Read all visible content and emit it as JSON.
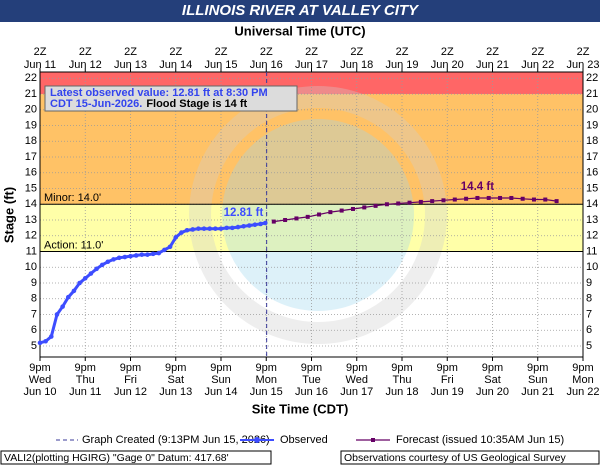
{
  "chart_data": {
    "type": "hydrograph",
    "title": "ILLINOIS RIVER AT VALLEY CITY",
    "top_axis_title": "Universal Time (UTC)",
    "x_axis_title": "Site Time (CDT)",
    "y_axis_title": "Stage (ft)",
    "ylim": [
      4.3,
      22.4
    ],
    "yticks": [
      5,
      6,
      7,
      8,
      9,
      10,
      11,
      12,
      13,
      14,
      15,
      16,
      17,
      18,
      19,
      20,
      21,
      22
    ],
    "xlim": [
      "2026-06-10T21:00",
      "2026-06-22T21:00"
    ],
    "xticks": [
      {
        "value": "2026-06-10T21:00",
        "label": "9pm"
      },
      {
        "value": "2026-06-11T21:00",
        "label": "9pm"
      },
      {
        "value": "2026-06-12T21:00",
        "label": "9pm"
      },
      {
        "value": "2026-06-13T21:00",
        "label": "9pm"
      },
      {
        "value": "2026-06-14T21:00",
        "label": "9pm"
      },
      {
        "value": "2026-06-15T21:00",
        "label": "9pm"
      },
      {
        "value": "2026-06-16T21:00",
        "label": "9pm"
      },
      {
        "value": "2026-06-17T21:00",
        "label": "9pm"
      },
      {
        "value": "2026-06-18T21:00",
        "label": "9pm"
      },
      {
        "value": "2026-06-19T21:00",
        "label": "9pm"
      },
      {
        "value": "2026-06-20T21:00",
        "label": "9pm"
      },
      {
        "value": "2026-06-21T21:00",
        "label": "9pm"
      },
      {
        "value": "2026-06-22T21:00",
        "label": "9pm"
      }
    ],
    "xtick_days": [
      "Wed",
      "Thu",
      "Fri",
      "Sat",
      "Sun",
      "Mon",
      "Tue",
      "Wed",
      "Thu",
      "Fri",
      "Sat",
      "Sun",
      "Mon"
    ],
    "xtick_dates": [
      "Jun 10",
      "Jun 11",
      "Jun 12",
      "Jun 13",
      "Jun 14",
      "Jun 15",
      "Jun 16",
      "Jun 17",
      "Jun 18",
      "Jun 19",
      "Jun 20",
      "Jun 21",
      "Jun 22"
    ],
    "x2ticks": [
      "2Z",
      "2Z",
      "2Z",
      "2Z",
      "2Z",
      "2Z",
      "2Z",
      "2Z",
      "2Z",
      "2Z",
      "2Z",
      "2Z",
      "2Z"
    ],
    "x2tick_dates": [
      "Jun 11",
      "Jun 12",
      "Jun 13",
      "Jun 14",
      "Jun 15",
      "Jun 16",
      "Jun 17",
      "Jun 18",
      "Jun 19",
      "Jun 20",
      "Jun 21",
      "Jun 22",
      "Jun 23"
    ],
    "grid": true,
    "stage_bands": [
      {
        "from": 11,
        "to": 14,
        "color": "#ffffa8"
      },
      {
        "from": 14,
        "to": 21,
        "color": "#ffc266"
      },
      {
        "from": 21,
        "color": "#ff6666"
      }
    ],
    "thresholds": [
      {
        "value": 14,
        "label": "Minor: 14.0'"
      },
      {
        "value": 11,
        "label": "Action: 11.0'"
      }
    ],
    "graph_created": "2026-06-15T21:13",
    "legend_graph_created": "Graph Created (9:13PM Jun 15, 2026)",
    "latest_note": {
      "line1": "Latest observed value: 12.81 ft at 8:30 PM",
      "line2_a": "CDT 15-Jun-2026.",
      "line2_b": "Flood Stage is 14 ft"
    },
    "latest_label": "12.81 ft",
    "forecast_peak_label": "14.4 ft",
    "series": [
      {
        "name": "Observed",
        "color": "#3d4dff",
        "marker": "circle",
        "x": [
          "2026-06-10T21:00",
          "2026-06-11T00:00",
          "2026-06-11T03:00",
          "2026-06-11T06:00",
          "2026-06-11T09:00",
          "2026-06-11T12:00",
          "2026-06-11T15:00",
          "2026-06-11T18:00",
          "2026-06-11T21:00",
          "2026-06-12T00:00",
          "2026-06-12T03:00",
          "2026-06-12T06:00",
          "2026-06-12T09:00",
          "2026-06-12T12:00",
          "2026-06-12T15:00",
          "2026-06-12T18:00",
          "2026-06-12T21:00",
          "2026-06-13T00:00",
          "2026-06-13T03:00",
          "2026-06-13T06:00",
          "2026-06-13T09:00",
          "2026-06-13T12:00",
          "2026-06-13T15:00",
          "2026-06-13T18:00",
          "2026-06-13T21:00",
          "2026-06-14T00:00",
          "2026-06-14T03:00",
          "2026-06-14T06:00",
          "2026-06-14T09:00",
          "2026-06-14T12:00",
          "2026-06-14T15:00",
          "2026-06-14T18:00",
          "2026-06-14T21:00",
          "2026-06-15T00:00",
          "2026-06-15T03:00",
          "2026-06-15T06:00",
          "2026-06-15T09:00",
          "2026-06-15T12:00",
          "2026-06-15T15:00",
          "2026-06-15T18:00",
          "2026-06-15T20:30"
        ],
        "values": [
          5.2,
          5.3,
          5.6,
          7.0,
          7.5,
          8.1,
          8.5,
          9.0,
          9.3,
          9.6,
          9.9,
          10.15,
          10.35,
          10.5,
          10.6,
          10.65,
          10.7,
          10.75,
          10.8,
          10.8,
          10.85,
          10.9,
          11.1,
          11.3,
          11.9,
          12.2,
          12.35,
          12.4,
          12.45,
          12.45,
          12.45,
          12.45,
          12.45,
          12.5,
          12.5,
          12.55,
          12.6,
          12.65,
          12.7,
          12.75,
          12.81
        ]
      },
      {
        "name": "Forecast (issued 10:35AM Jun 15)",
        "color": "#660066",
        "marker": "square",
        "x": [
          "2026-06-16T01:00",
          "2026-06-16T07:00",
          "2026-06-16T13:00",
          "2026-06-16T19:00",
          "2026-06-17T01:00",
          "2026-06-17T07:00",
          "2026-06-17T13:00",
          "2026-06-17T19:00",
          "2026-06-18T01:00",
          "2026-06-18T07:00",
          "2026-06-18T13:00",
          "2026-06-18T19:00",
          "2026-06-19T01:00",
          "2026-06-19T07:00",
          "2026-06-19T13:00",
          "2026-06-19T19:00",
          "2026-06-20T01:00",
          "2026-06-20T07:00",
          "2026-06-20T13:00",
          "2026-06-20T19:00",
          "2026-06-21T01:00",
          "2026-06-21T07:00",
          "2026-06-21T13:00",
          "2026-06-21T19:00",
          "2026-06-22T01:00",
          "2026-06-22T07:00"
        ],
        "values": [
          12.9,
          13.0,
          13.1,
          13.2,
          13.35,
          13.5,
          13.6,
          13.7,
          13.8,
          13.9,
          14.0,
          14.05,
          14.1,
          14.15,
          14.2,
          14.25,
          14.3,
          14.35,
          14.4,
          14.4,
          14.4,
          14.4,
          14.35,
          14.3,
          14.3,
          14.2
        ]
      }
    ],
    "footer_left": "VALI2(plotting HGIRG) \"Gage 0\" Datum: 417.68'",
    "footer_right": "Observations courtesy of US Geological Survey"
  }
}
